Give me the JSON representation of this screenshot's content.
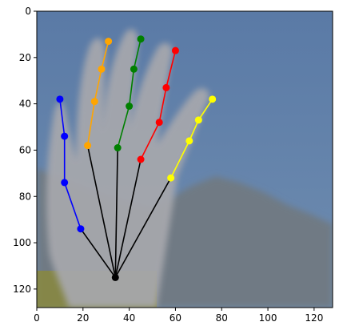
{
  "chart_data": {
    "type": "scatter",
    "title": "",
    "xlabel": "",
    "ylabel": "",
    "xlim": [
      0,
      128
    ],
    "ylim": [
      128,
      0
    ],
    "y_axis_inverted": true,
    "grid": false,
    "legend": "none",
    "x_ticks": [
      0,
      20,
      40,
      60,
      80,
      100,
      120
    ],
    "y_ticks": [
      0,
      20,
      40,
      60,
      80,
      100,
      120
    ],
    "x_tick_labels": [
      "0",
      "20",
      "40",
      "60",
      "80",
      "100",
      "120"
    ],
    "y_tick_labels": [
      "0",
      "20",
      "40",
      "60",
      "80",
      "100",
      "120"
    ],
    "background": {
      "description": "blurred photo of an open hand against blue sky and mountains",
      "sky_color": "#5f7fa6",
      "mountain_color": "#6f7a84",
      "hand_color": "#a5a6aa",
      "ground_color": "#8d8a3a"
    },
    "wrist": {
      "x": 34,
      "y": 115,
      "color": "#000000"
    },
    "palm_lines": {
      "color": "#000000",
      "targets": [
        {
          "x": 22,
          "y": 58
        },
        {
          "x": 35,
          "y": 59
        },
        {
          "x": 45,
          "y": 64
        },
        {
          "x": 58,
          "y": 72
        }
      ]
    },
    "series": [
      {
        "color": "#0000ff",
        "points": [
          {
            "x": 19,
            "y": 94
          },
          {
            "x": 12,
            "y": 74
          },
          {
            "x": 12,
            "y": 54
          },
          {
            "x": 10,
            "y": 38
          }
        ]
      },
      {
        "color": "#ffa500",
        "points": [
          {
            "x": 22,
            "y": 58
          },
          {
            "x": 25,
            "y": 39
          },
          {
            "x": 28,
            "y": 25
          },
          {
            "x": 31,
            "y": 13
          }
        ]
      },
      {
        "color": "#008000",
        "points": [
          {
            "x": 35,
            "y": 59
          },
          {
            "x": 40,
            "y": 41
          },
          {
            "x": 42,
            "y": 25
          },
          {
            "x": 45,
            "y": 12
          }
        ]
      },
      {
        "color": "#ff0000",
        "points": [
          {
            "x": 45,
            "y": 64
          },
          {
            "x": 53,
            "y": 48
          },
          {
            "x": 56,
            "y": 33
          },
          {
            "x": 60,
            "y": 17
          }
        ]
      },
      {
        "color": "#ffff00",
        "points": [
          {
            "x": 58,
            "y": 72
          },
          {
            "x": 66,
            "y": 56
          },
          {
            "x": 70,
            "y": 47
          },
          {
            "x": 76,
            "y": 38
          }
        ]
      }
    ]
  }
}
